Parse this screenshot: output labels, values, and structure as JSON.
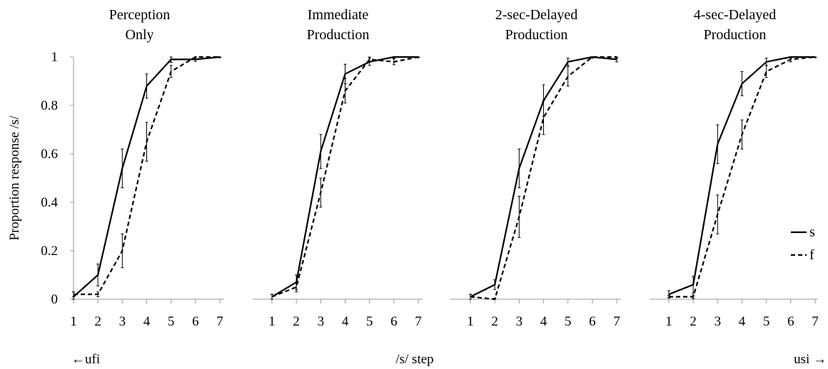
{
  "figure": {
    "ylabel": "Proportion response /s/",
    "xlabel": "/s/ step",
    "left_note": "←ufi",
    "right_note": "usi →",
    "legend": [
      {
        "label": "s",
        "style": "solid"
      },
      {
        "label": "f",
        "style": "dashed"
      }
    ]
  },
  "chart_data": [
    {
      "type": "line",
      "title_lines": [
        "Perception",
        "Only"
      ],
      "x": [
        1,
        2,
        3,
        4,
        5,
        6,
        7
      ],
      "xlim": [
        1,
        7
      ],
      "ylim": [
        0,
        1
      ],
      "yticks": [
        0,
        0.2,
        0.4,
        0.6,
        0.8,
        1
      ],
      "ytick_labels": [
        "0",
        "0.2",
        "0.4",
        "0.6",
        "0.8",
        "1"
      ],
      "show_yticks": true,
      "series": [
        {
          "name": "s",
          "style": "solid",
          "values": [
            0.01,
            0.1,
            0.54,
            0.88,
            0.99,
            0.99,
            1.0
          ],
          "err": [
            0.02,
            0.045,
            0.08,
            0.05,
            0.012,
            0.008,
            0.003
          ]
        },
        {
          "name": "f",
          "style": "dashed",
          "values": [
            0.02,
            0.02,
            0.2,
            0.65,
            0.94,
            1.0,
            1.0
          ],
          "err": [
            0.01,
            0.01,
            0.07,
            0.08,
            0.025,
            0.01,
            0.003
          ]
        }
      ]
    },
    {
      "type": "line",
      "title_lines": [
        "Immediate",
        "Production"
      ],
      "x": [
        1,
        2,
        3,
        4,
        5,
        6,
        7
      ],
      "xlim": [
        1,
        7
      ],
      "ylim": [
        0,
        1
      ],
      "show_yticks": false,
      "series": [
        {
          "name": "s",
          "style": "solid",
          "values": [
            0.01,
            0.07,
            0.61,
            0.93,
            0.98,
            1.0,
            1.0
          ],
          "err": [
            0.01,
            0.03,
            0.07,
            0.04,
            0.015,
            0.005,
            0.003
          ]
        },
        {
          "name": "f",
          "style": "dashed",
          "values": [
            0.01,
            0.05,
            0.44,
            0.86,
            0.99,
            0.98,
            1.0
          ],
          "err": [
            0.01,
            0.02,
            0.06,
            0.05,
            0.01,
            0.012,
            0.003
          ]
        }
      ]
    },
    {
      "type": "line",
      "title_lines": [
        "2-sec-Delayed",
        "Production"
      ],
      "x": [
        1,
        2,
        3,
        4,
        5,
        6,
        7
      ],
      "xlim": [
        1,
        7
      ],
      "ylim": [
        0,
        1
      ],
      "show_yticks": false,
      "series": [
        {
          "name": "s",
          "style": "solid",
          "values": [
            0.01,
            0.06,
            0.54,
            0.82,
            0.98,
            1.0,
            0.99
          ],
          "err": [
            0.01,
            0.02,
            0.08,
            0.065,
            0.015,
            0.005,
            0.01
          ]
        },
        {
          "name": "f",
          "style": "dashed",
          "values": [
            0.01,
            0.0,
            0.34,
            0.75,
            0.92,
            1.0,
            1.0
          ],
          "err": [
            0.01,
            0.005,
            0.085,
            0.07,
            0.04,
            0.005,
            0.005
          ]
        }
      ]
    },
    {
      "type": "line",
      "title_lines": [
        "4-sec-Delayed",
        "Production"
      ],
      "x": [
        1,
        2,
        3,
        4,
        5,
        6,
        7
      ],
      "xlim": [
        1,
        7
      ],
      "ylim": [
        0,
        1
      ],
      "show_yticks": false,
      "series": [
        {
          "name": "s",
          "style": "solid",
          "values": [
            0.02,
            0.06,
            0.64,
            0.89,
            0.98,
            1.0,
            1.0
          ],
          "err": [
            0.015,
            0.035,
            0.08,
            0.05,
            0.015,
            0.005,
            0.003
          ]
        },
        {
          "name": "f",
          "style": "dashed",
          "values": [
            0.01,
            0.01,
            0.35,
            0.68,
            0.94,
            0.99,
            1.0
          ],
          "err": [
            0.005,
            0.008,
            0.08,
            0.06,
            0.025,
            0.01,
            0.003
          ]
        }
      ]
    }
  ]
}
